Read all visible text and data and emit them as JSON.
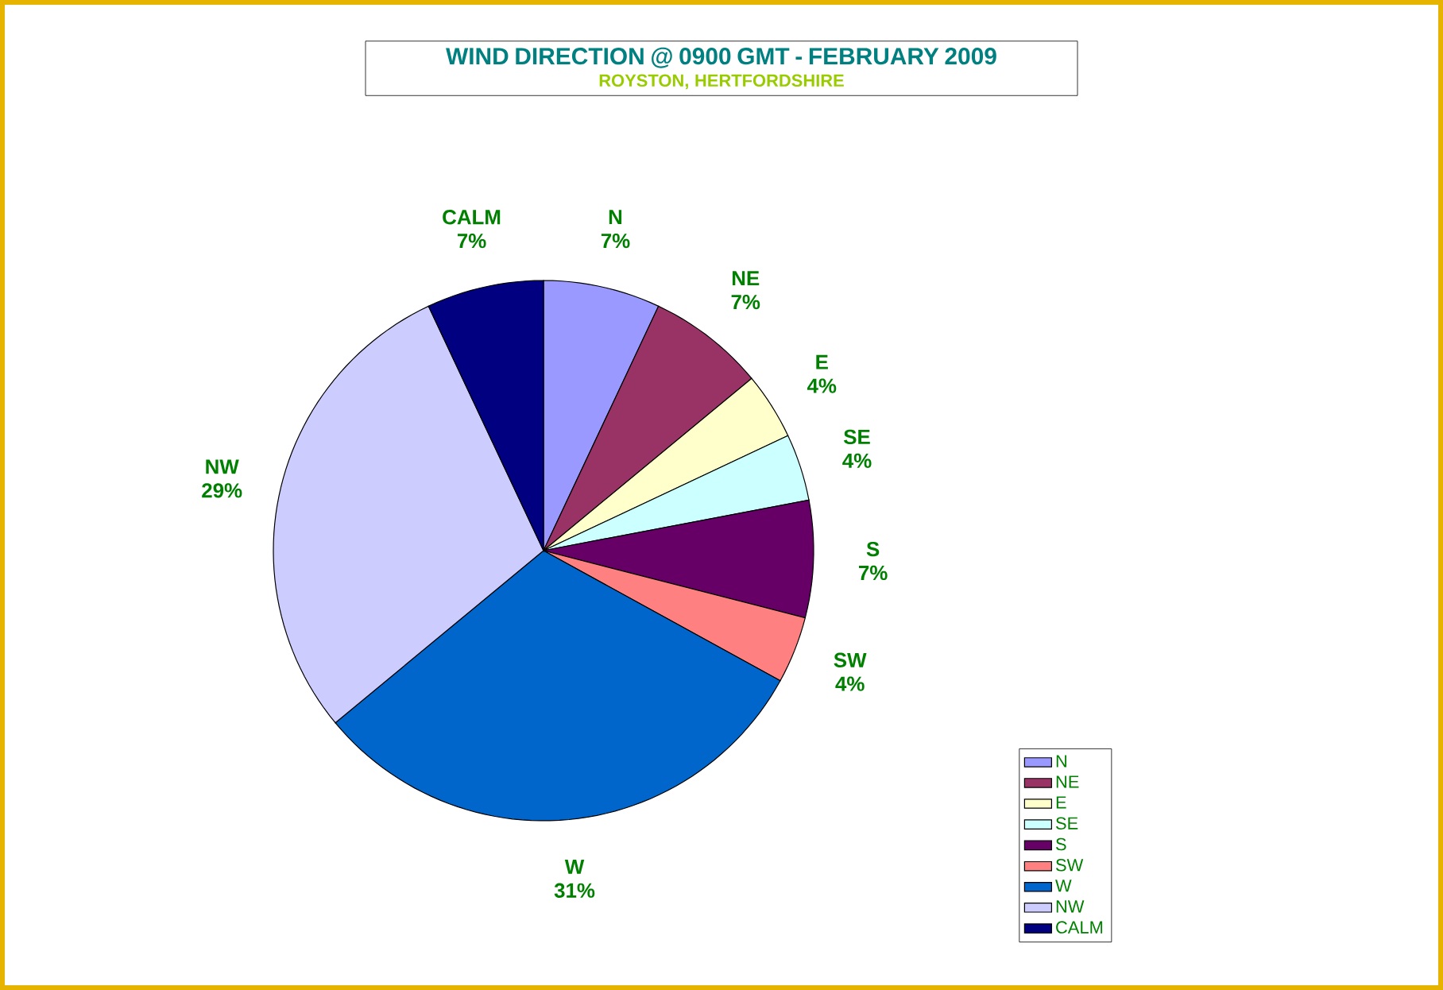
{
  "chart_data": {
    "type": "pie",
    "title": "WIND DIRECTION @ 0900 GMT - FEBRUARY 2009",
    "subtitle": "ROYSTON, HERTFORDSHIRE",
    "categories": [
      "N",
      "NE",
      "E",
      "SE",
      "S",
      "SW",
      "W",
      "NW",
      "CALM"
    ],
    "values": [
      7,
      7,
      4,
      4,
      7,
      4,
      31,
      29,
      7
    ],
    "colors": [
      "#9999ff",
      "#993366",
      "#ffffcc",
      "#ccffff",
      "#660066",
      "#ff8080",
      "#0066cc",
      "#ccccff",
      "#000080"
    ],
    "value_labels": [
      "7%",
      "7%",
      "4%",
      "4%",
      "7%",
      "4%",
      "31%",
      "29%",
      "7%"
    ],
    "legend": "bottom right"
  }
}
